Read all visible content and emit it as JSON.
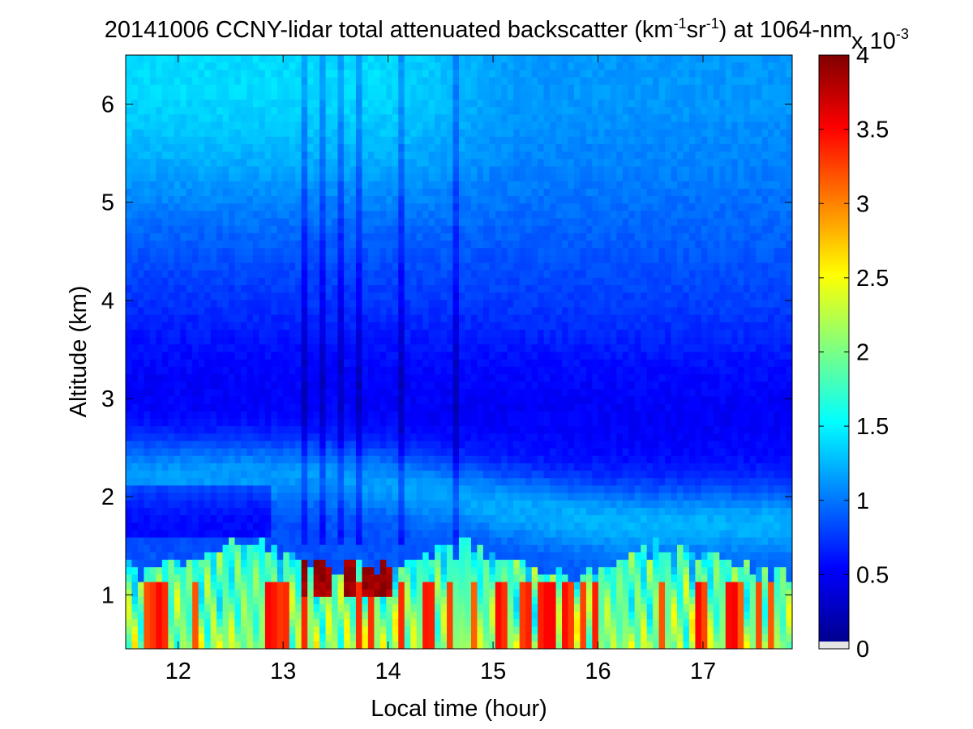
{
  "chart_data": {
    "type": "heatmap",
    "title_parts": {
      "prefix": "20141006 CCNY-lidar total attenuated backscatter (km",
      "sup1": "-1",
      "mid": "sr",
      "sup2": "-1",
      "suffix": ") at 1064-nm"
    },
    "xlabel": "Local time (hour)",
    "ylabel": "Altitude (km)",
    "xlim": [
      11.5,
      17.85
    ],
    "ylim": [
      0.45,
      6.5
    ],
    "xticks": [
      12,
      13,
      14,
      15,
      16,
      17
    ],
    "yticks": [
      1,
      2,
      3,
      4,
      5,
      6
    ],
    "colorbar": {
      "range": [
        0,
        4
      ],
      "ticks": [
        "0",
        "0.5",
        "1",
        "1.5",
        "2",
        "2.5",
        "3",
        "3.5",
        "4"
      ],
      "tick_values": [
        0,
        0.5,
        1,
        1.5,
        2,
        2.5,
        3,
        3.5,
        4
      ],
      "exponent_base": "x 10",
      "exponent_power": "-3",
      "colormap": "jet",
      "below_range_color": "#e6e6e6"
    },
    "grid": false,
    "legend": "none"
  }
}
